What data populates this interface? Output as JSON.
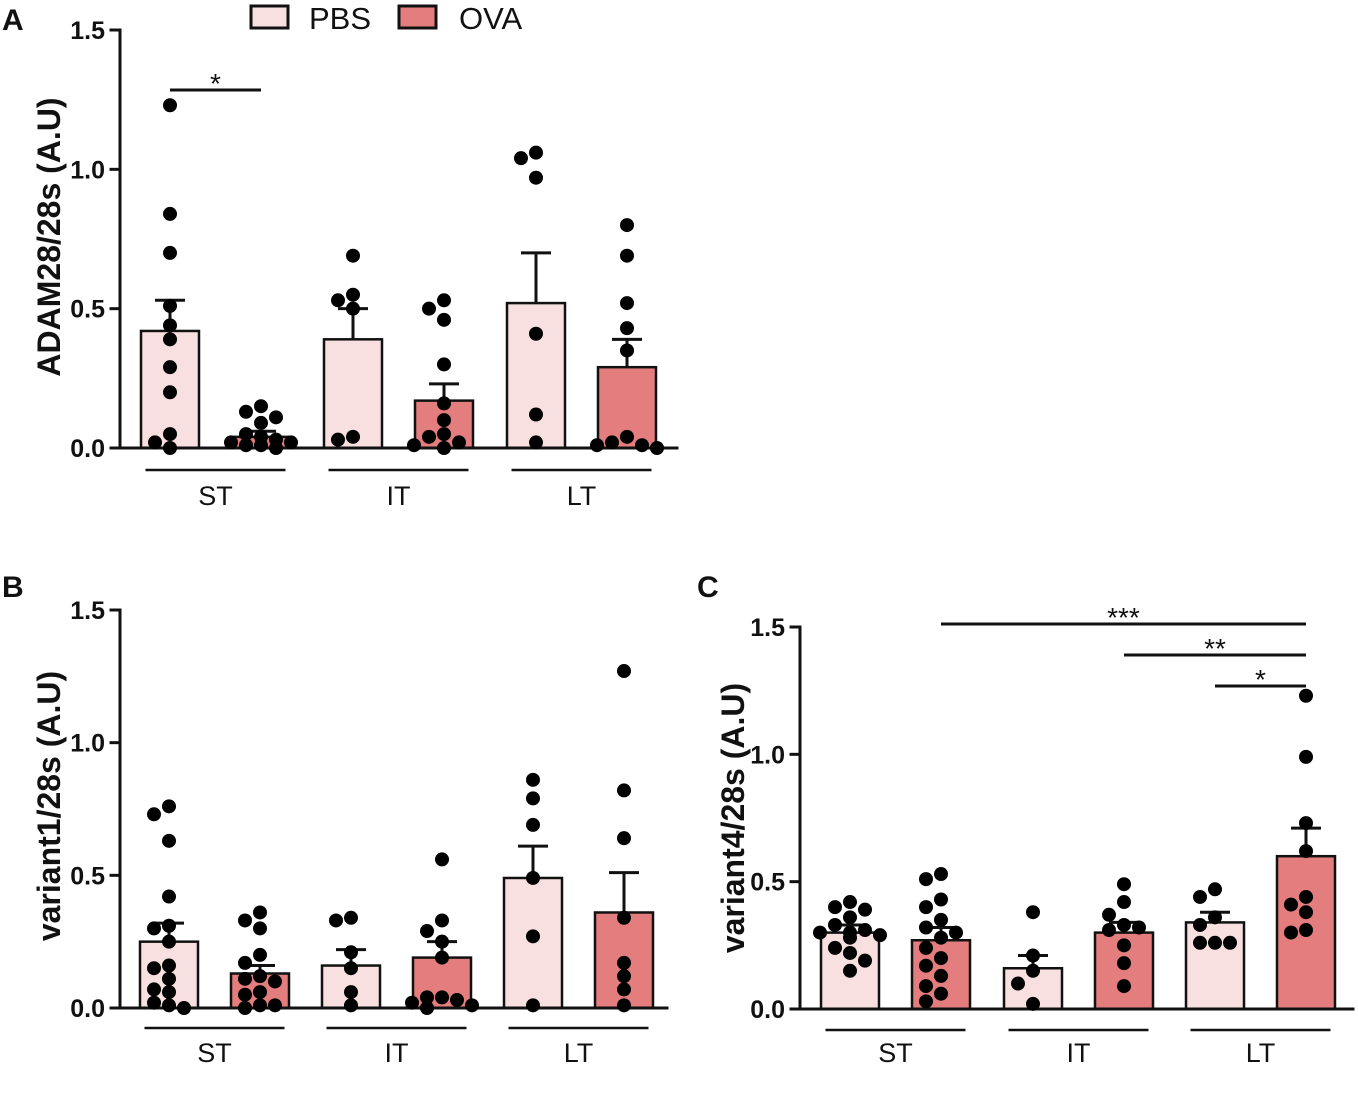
{
  "figure": {
    "legend": [
      {
        "label": "PBS",
        "color": "#f9e0e0"
      },
      {
        "label": "OVA",
        "color": "#e47d7d"
      }
    ]
  },
  "chart_data": [
    {
      "panel": "A",
      "type": "bar",
      "ylabel": "ADAM28/28s (A.U)",
      "ylim": [
        0,
        1.5
      ],
      "yticks": [
        "0.0",
        "0.5",
        "1.0",
        "1.5"
      ],
      "categories": [
        "ST",
        "IT",
        "LT"
      ],
      "series": [
        {
          "name": "PBS",
          "values": [
            0.42,
            0.39,
            0.52
          ],
          "sem": [
            0.11,
            0.11,
            0.18
          ],
          "points": [
            [
              1.23,
              0.84,
              0.7,
              0.51,
              0.44,
              0.39,
              0.29,
              0.2,
              0.05,
              0.02,
              0.0
            ],
            [
              0.69,
              0.55,
              0.53,
              0.5,
              0.04,
              0.03
            ],
            [
              1.06,
              1.04,
              0.97,
              0.41,
              0.12,
              0.02
            ]
          ]
        },
        {
          "name": "OVA",
          "values": [
            0.04,
            0.17,
            0.29
          ],
          "sem": [
            0.02,
            0.06,
            0.1
          ],
          "points": [
            [
              0.15,
              0.13,
              0.11,
              0.09,
              0.05,
              0.04,
              0.03,
              0.02,
              0.02,
              0.01,
              0.01,
              0.0
            ],
            [
              0.53,
              0.5,
              0.46,
              0.3,
              0.16,
              0.1,
              0.05,
              0.04,
              0.02,
              0.01,
              0.0
            ],
            [
              0.8,
              0.69,
              0.52,
              0.43,
              0.35,
              0.04,
              0.02,
              0.01,
              0.01,
              0.0
            ]
          ]
        }
      ],
      "significance": [
        {
          "from": {
            "category": "ST",
            "series": "PBS"
          },
          "to": {
            "category": "ST",
            "series": "OVA"
          },
          "label": "*"
        }
      ]
    },
    {
      "panel": "B",
      "type": "bar",
      "ylabel": "variant1/28s (A.U)",
      "ylim": [
        0,
        1.5
      ],
      "yticks": [
        "0.0",
        "0.5",
        "1.0",
        "1.5"
      ],
      "categories": [
        "ST",
        "IT",
        "LT"
      ],
      "series": [
        {
          "name": "PBS",
          "values": [
            0.25,
            0.16,
            0.49
          ],
          "sem": [
            0.07,
            0.06,
            0.12
          ],
          "points": [
            [
              0.76,
              0.73,
              0.63,
              0.42,
              0.31,
              0.3,
              0.25,
              0.16,
              0.15,
              0.11,
              0.07,
              0.06,
              0.02,
              0.01,
              0.0
            ],
            [
              0.34,
              0.33,
              0.21,
              0.15,
              0.06,
              0.01
            ],
            [
              0.86,
              0.79,
              0.69,
              0.49,
              0.27,
              0.01
            ]
          ]
        },
        {
          "name": "OVA",
          "values": [
            0.13,
            0.19,
            0.36
          ],
          "sem": [
            0.03,
            0.06,
            0.15
          ],
          "points": [
            [
              0.36,
              0.33,
              0.3,
              0.2,
              0.17,
              0.12,
              0.11,
              0.1,
              0.06,
              0.05,
              0.01,
              0.01,
              0.0
            ],
            [
              0.56,
              0.33,
              0.29,
              0.25,
              0.19,
              0.04,
              0.04,
              0.03,
              0.02,
              0.01,
              0.0
            ],
            [
              1.27,
              0.82,
              0.64,
              0.34,
              0.17,
              0.12,
              0.07,
              0.01
            ]
          ]
        }
      ],
      "significance": []
    },
    {
      "panel": "C",
      "type": "bar",
      "ylabel": "variant4/28s (A.U)",
      "ylim": [
        0,
        1.5
      ],
      "yticks": [
        "0.0",
        "0.5",
        "1.0",
        "1.5"
      ],
      "categories": [
        "ST",
        "IT",
        "LT"
      ],
      "series": [
        {
          "name": "PBS",
          "values": [
            0.3,
            0.16,
            0.34
          ],
          "sem": [
            0.03,
            0.05,
            0.04
          ],
          "points": [
            [
              0.42,
              0.4,
              0.39,
              0.36,
              0.33,
              0.31,
              0.3,
              0.3,
              0.29,
              0.28,
              0.24,
              0.22,
              0.19,
              0.15
            ],
            [
              0.38,
              0.21,
              0.15,
              0.1,
              0.02
            ],
            [
              0.47,
              0.44,
              0.36,
              0.33,
              0.26,
              0.26,
              0.26
            ]
          ]
        },
        {
          "name": "OVA",
          "values": [
            0.27,
            0.3,
            0.6
          ],
          "sem": [
            0.05,
            0.04,
            0.11
          ],
          "points": [
            [
              0.53,
              0.51,
              0.43,
              0.4,
              0.35,
              0.32,
              0.3,
              0.28,
              0.24,
              0.2,
              0.17,
              0.13,
              0.09,
              0.06,
              0.03
            ],
            [
              0.49,
              0.42,
              0.37,
              0.33,
              0.32,
              0.31,
              0.25,
              0.18,
              0.09
            ],
            [
              1.23,
              0.99,
              0.73,
              0.62,
              0.44,
              0.41,
              0.38,
              0.31,
              0.3
            ]
          ]
        }
      ],
      "significance": [
        {
          "from": {
            "category": "ST",
            "series": "OVA"
          },
          "to": {
            "category": "LT",
            "series": "OVA"
          },
          "label": "***"
        },
        {
          "from": {
            "category": "IT",
            "series": "OVA"
          },
          "to": {
            "category": "LT",
            "series": "OVA"
          },
          "label": "**"
        },
        {
          "from": {
            "category": "LT",
            "series": "PBS"
          },
          "to": {
            "category": "LT",
            "series": "OVA"
          },
          "label": "*"
        }
      ]
    }
  ]
}
